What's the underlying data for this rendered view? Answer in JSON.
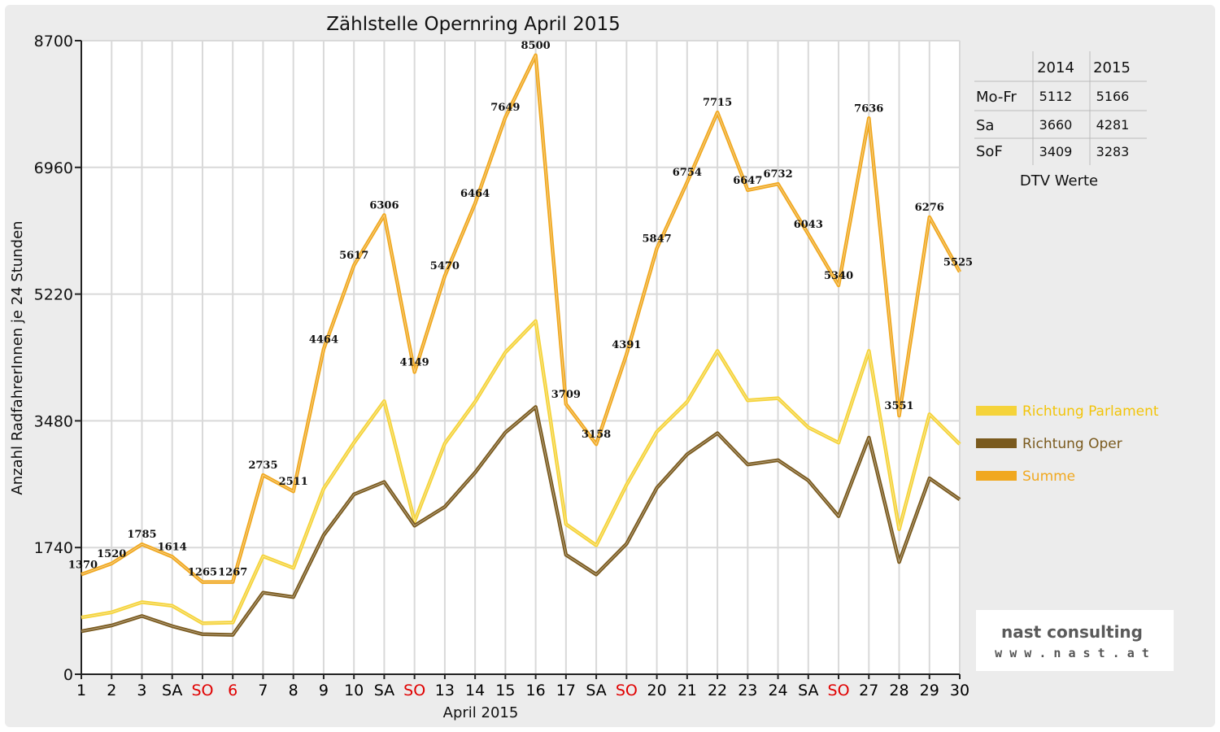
{
  "chart_data": {
    "type": "line",
    "title": "Zählstelle Opernring April 2015",
    "xlabel": "April 2015",
    "ylabel": "Anzahl RadfahrerInnen je 24 Stunden",
    "ylim": [
      0,
      8700
    ],
    "yticks": [
      "0",
      "1740",
      "3480",
      "5220",
      "6960",
      "8700"
    ],
    "grid": true,
    "legend_position": "right",
    "categories": [
      "1",
      "2",
      "3",
      "SA",
      "SO",
      "6",
      "7",
      "8",
      "9",
      "10",
      "SA",
      "SO",
      "13",
      "14",
      "15",
      "16",
      "17",
      "SA",
      "SO",
      "20",
      "21",
      "22",
      "23",
      "24",
      "SA",
      "SO",
      "27",
      "28",
      "29",
      "30"
    ],
    "category_colors": [
      "#000000",
      "#000000",
      "#000000",
      "#000000",
      "#e00000",
      "#e00000",
      "#000000",
      "#000000",
      "#000000",
      "#000000",
      "#000000",
      "#e00000",
      "#000000",
      "#000000",
      "#000000",
      "#000000",
      "#000000",
      "#000000",
      "#e00000",
      "#000000",
      "#000000",
      "#000000",
      "#000000",
      "#000000",
      "#000000",
      "#e00000",
      "#000000",
      "#000000",
      "#000000",
      "#000000"
    ],
    "series": [
      {
        "name": "Richtung Parlament",
        "color": "#f5d33a",
        "values": [
          780,
          850,
          990,
          940,
          700,
          710,
          1620,
          1460,
          2550,
          3180,
          3750,
          2100,
          3170,
          3740,
          4420,
          4850,
          2060,
          1770,
          2600,
          3330,
          3740,
          4440,
          3760,
          3790,
          3390,
          3180,
          4440,
          1990,
          3570,
          3160
        ]
      },
      {
        "name": "Richtung Oper",
        "color": "#7a5a1e",
        "values": [
          590,
          670,
          800,
          660,
          550,
          540,
          1120,
          1060,
          1910,
          2470,
          2640,
          2040,
          2300,
          2770,
          3320,
          3670,
          1640,
          1370,
          1790,
          2560,
          3020,
          3310,
          2880,
          2940,
          2660,
          2170,
          3250,
          1540,
          2690,
          2400
        ]
      },
      {
        "name": "Summe",
        "color": "#f0a820",
        "values": [
          1370,
          1520,
          1785,
          1614,
          1265,
          1267,
          2735,
          2511,
          4464,
          5617,
          6306,
          4149,
          5470,
          6464,
          7649,
          8500,
          3709,
          3158,
          4391,
          5847,
          6754,
          7715,
          6647,
          6732,
          6043,
          5340,
          7636,
          3551,
          6276,
          5525
        ]
      }
    ],
    "data_labels": [
      "1370",
      "1520",
      "1785",
      "1614",
      "1265",
      "1267",
      "2735",
      "2511",
      "4464",
      "5617",
      "6306",
      "4149",
      "5470",
      "6464",
      "7649",
      "8500",
      "3709",
      "3158",
      "4391",
      "5847",
      "6754",
      "7715",
      "6647",
      "6732",
      "6043",
      "5340",
      "7636",
      "3551",
      "6276",
      "5525"
    ]
  },
  "dtv_table": {
    "columns": [
      "2014",
      "2015"
    ],
    "rows": [
      {
        "label": "Mo-Fr",
        "values": [
          "5112",
          "5166"
        ]
      },
      {
        "label": "Sa",
        "values": [
          "3660",
          "4281"
        ]
      },
      {
        "label": "SoF",
        "values": [
          "3409",
          "3283"
        ]
      }
    ],
    "caption": "DTV Werte"
  },
  "logo": {
    "line1": "nast consulting",
    "line2": "w w w . n a s t . a t"
  }
}
